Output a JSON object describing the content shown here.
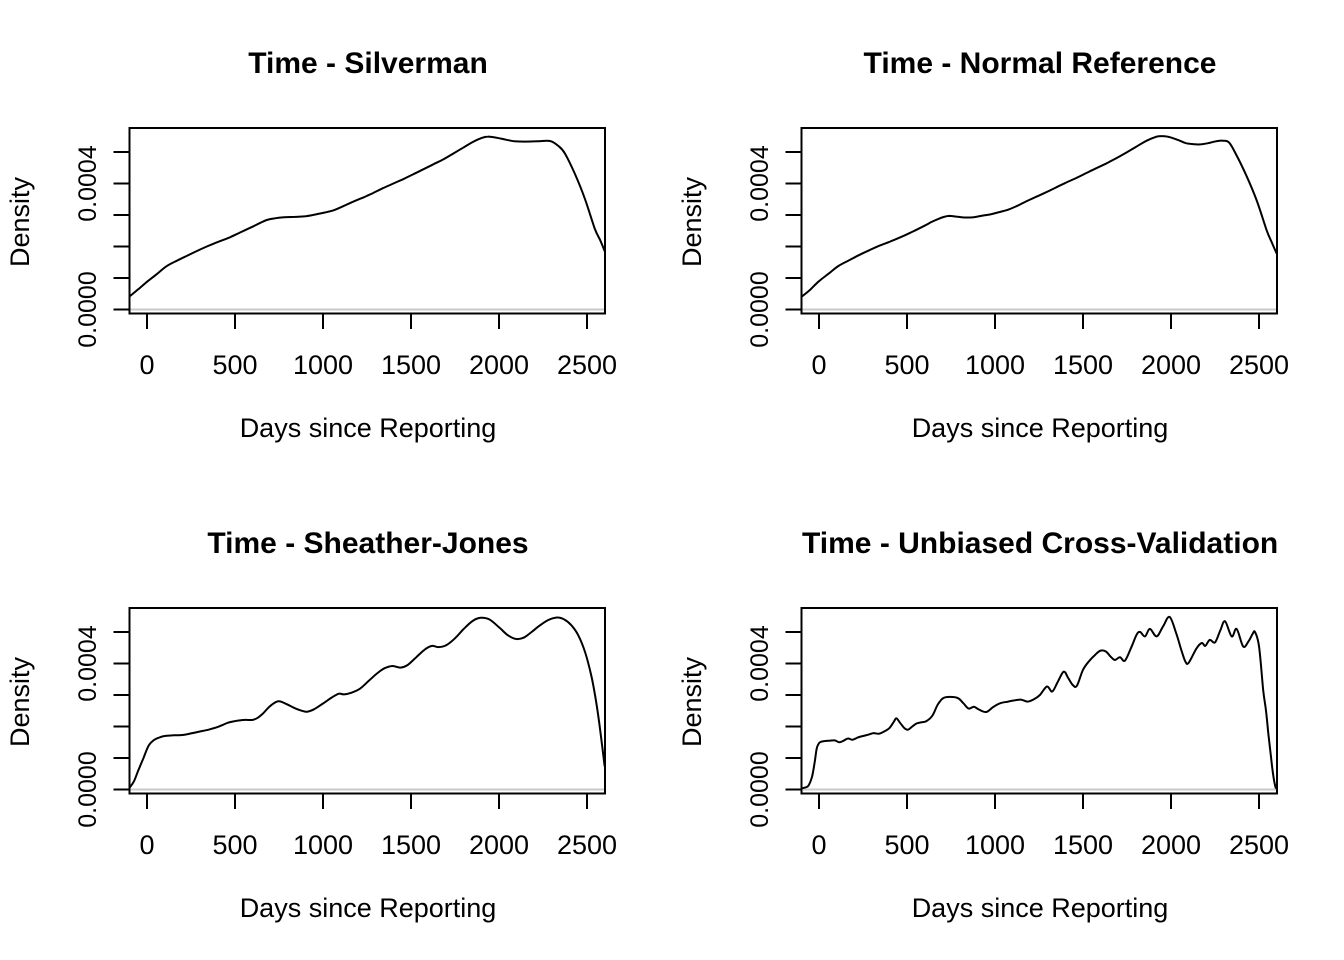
{
  "figure": {
    "background": "#ffffff",
    "curve_color": "#000000",
    "text_color": "#000000",
    "zero_line_color": "#c9c9c9"
  },
  "chart_data": [
    {
      "type": "line",
      "title": "Time - Silverman",
      "xlabel": "Days since Reporting",
      "ylabel": "Density",
      "grid": false,
      "legend": null,
      "xlim": [
        -105,
        2602
      ],
      "ylim": [
        0,
        0.000576
      ],
      "x_ticks": [
        0,
        500,
        1000,
        1500,
        2000,
        2500
      ],
      "x_tick_labels": [
        "0",
        "500",
        "1000",
        "1500",
        "2000",
        "2500"
      ],
      "y_ticks": [
        0,
        0.0001,
        0.0002,
        0.0003,
        0.0004,
        0.0005
      ],
      "y_tick_labels": [
        {
          "value": 0,
          "label": "0.0000"
        },
        {
          "value": 0.0004,
          "label": "0.0004"
        }
      ],
      "x": [
        -96,
        -50,
        0,
        55,
        110,
        170,
        225,
        285,
        340,
        405,
        470,
        535,
        600,
        640,
        680,
        730,
        780,
        840,
        900,
        960,
        1010,
        1060,
        1115,
        1170,
        1230,
        1285,
        1340,
        1400,
        1460,
        1515,
        1570,
        1627,
        1685,
        1740,
        1800,
        1855,
        1900,
        1937,
        1990,
        2040,
        2090,
        2150,
        2220,
        2290,
        2340,
        2375,
        2430,
        2487,
        2544,
        2575,
        2600
      ],
      "y": [
        4.3e-05,
        6.4e-05,
        8.8e-05,
        0.000112,
        0.000137,
        0.000155,
        0.00017,
        0.000186,
        0.0002,
        0.000215,
        0.000229,
        0.000246,
        0.000263,
        0.000274,
        0.000284,
        0.00029,
        0.000293,
        0.000294,
        0.000296,
        0.000302,
        0.000308,
        0.000315,
        0.000328,
        0.000342,
        0.000356,
        0.00037,
        0.000385,
        0.0004,
        0.000415,
        0.00043,
        0.000445,
        0.000461,
        0.000477,
        0.000495,
        0.000515,
        0.000533,
        0.000544,
        0.000549,
        0.000545,
        0.000539,
        0.000534,
        0.000533,
        0.000534,
        0.000535,
        0.000518,
        0.000495,
        0.000432,
        0.000353,
        0.000257,
        0.00022,
        0.000186
      ]
    },
    {
      "type": "line",
      "title": "Time - Normal Reference",
      "xlabel": "Days since Reporting",
      "ylabel": "Density",
      "grid": false,
      "legend": null,
      "xlim": [
        -105,
        2602
      ],
      "ylim": [
        0,
        0.000576
      ],
      "x_ticks": [
        0,
        500,
        1000,
        1500,
        2000,
        2500
      ],
      "x_tick_labels": [
        "0",
        "500",
        "1000",
        "1500",
        "2000",
        "2500"
      ],
      "y_ticks": [
        0,
        0.0001,
        0.0002,
        0.0003,
        0.0004,
        0.0005
      ],
      "y_tick_labels": [
        {
          "value": 0,
          "label": "0.0000"
        },
        {
          "value": 0.0004,
          "label": "0.0004"
        }
      ],
      "x": [
        -96,
        -50,
        0,
        55,
        110,
        170,
        225,
        285,
        340,
        405,
        470,
        535,
        600,
        640,
        680,
        710,
        740,
        780,
        830,
        880,
        930,
        980,
        1030,
        1080,
        1130,
        1180,
        1235,
        1290,
        1345,
        1400,
        1460,
        1515,
        1570,
        1630,
        1685,
        1740,
        1800,
        1855,
        1900,
        1930,
        1965,
        2005,
        2045,
        2085,
        2125,
        2165,
        2210,
        2255,
        2295,
        2330,
        2370,
        2430,
        2487,
        2544,
        2575,
        2600
      ],
      "y": [
        4.2e-05,
        6.3e-05,
        9e-05,
        0.000114,
        0.000138,
        0.000156,
        0.000172,
        0.000188,
        0.000202,
        0.000216,
        0.000231,
        0.000248,
        0.000266,
        0.000278,
        0.000288,
        0.000294,
        0.000297,
        0.000295,
        0.000292,
        0.000293,
        0.000298,
        0.000303,
        0.00031,
        0.000318,
        0.00033,
        0.000344,
        0.000358,
        0.000372,
        0.000387,
        0.000402,
        0.000417,
        0.000432,
        0.000447,
        0.000463,
        0.000479,
        0.000496,
        0.000516,
        0.000534,
        0.000545,
        0.00055,
        0.00055,
        0.000545,
        0.000537,
        0.000528,
        0.000525,
        0.000524,
        0.000528,
        0.000534,
        0.000536,
        0.00053,
        0.000492,
        0.000423,
        0.000346,
        0.000251,
        0.00021,
        0.000178
      ]
    },
    {
      "type": "line",
      "title": "Time - Sheather-Jones",
      "xlabel": "Days since Reporting",
      "ylabel": "Density",
      "grid": false,
      "legend": null,
      "xlim": [
        -105,
        2602
      ],
      "ylim": [
        0,
        0.000576
      ],
      "x_ticks": [
        0,
        500,
        1000,
        1500,
        2000,
        2500
      ],
      "x_tick_labels": [
        "0",
        "500",
        "1000",
        "1500",
        "2000",
        "2500"
      ],
      "y_ticks": [
        0,
        0.0001,
        0.0002,
        0.0003,
        0.0004,
        0.0005
      ],
      "y_tick_labels": [
        {
          "value": 0,
          "label": "0.0000"
        },
        {
          "value": 0.0004,
          "label": "0.0004"
        }
      ],
      "x": [
        -100,
        -75,
        -50,
        -20,
        10,
        40,
        70,
        100,
        150,
        200,
        250,
        300,
        350,
        400,
        430,
        460,
        490,
        520,
        560,
        600,
        630,
        660,
        700,
        745,
        790,
        840,
        880,
        910,
        950,
        1000,
        1050,
        1090,
        1120,
        1160,
        1210,
        1260,
        1310,
        1350,
        1395,
        1440,
        1480,
        1530,
        1580,
        1620,
        1655,
        1700,
        1750,
        1800,
        1850,
        1895,
        1945,
        2000,
        2050,
        2095,
        2140,
        2185,
        2230,
        2280,
        2330,
        2370,
        2410,
        2450,
        2490,
        2525,
        2550,
        2570,
        2588,
        2600
      ],
      "y": [
        5e-06,
        2.5e-05,
        6e-05,
        0.0001,
        0.00014,
        0.000157,
        0.000165,
        0.00017,
        0.000172,
        0.000173,
        0.000178,
        0.000184,
        0.00019,
        0.000198,
        0.000205,
        0.000212,
        0.000216,
        0.000219,
        0.000221,
        0.000221,
        0.000228,
        0.000242,
        0.000265,
        0.00028,
        0.000272,
        0.000258,
        0.00025,
        0.000247,
        0.000255,
        0.000273,
        0.000292,
        0.000304,
        0.000302,
        0.000307,
        0.00032,
        0.000345,
        0.00037,
        0.000385,
        0.000392,
        0.000387,
        0.000395,
        0.00042,
        0.000445,
        0.000456,
        0.000452,
        0.000458,
        0.00048,
        0.00051,
        0.000535,
        0.000545,
        0.00054,
        0.000515,
        0.00049,
        0.000478,
        0.000482,
        0.0005,
        0.00052,
        0.000538,
        0.000546,
        0.00054,
        0.000522,
        0.00049,
        0.000435,
        0.00036,
        0.000285,
        0.00021,
        0.00013,
        7.5e-05
      ]
    },
    {
      "type": "line",
      "title": "Time - Unbiased Cross-Validation",
      "xlabel": "Days since Reporting",
      "ylabel": "Density",
      "grid": false,
      "legend": null,
      "xlim": [
        -105,
        2602
      ],
      "ylim": [
        0,
        0.000576
      ],
      "x_ticks": [
        0,
        500,
        1000,
        1500,
        2000,
        2500
      ],
      "x_tick_labels": [
        "0",
        "500",
        "1000",
        "1500",
        "2000",
        "2500"
      ],
      "y_ticks": [
        0,
        0.0001,
        0.0002,
        0.0003,
        0.0004,
        0.0005
      ],
      "y_tick_labels": [
        {
          "value": 0,
          "label": "0.0000"
        },
        {
          "value": 0.0004,
          "label": "0.0004"
        }
      ],
      "x": [
        -105,
        -80,
        -60,
        -40,
        -25,
        -13,
        0,
        15,
        35,
        60,
        90,
        115,
        140,
        165,
        190,
        220,
        250,
        280,
        310,
        340,
        370,
        400,
        425,
        440,
        460,
        485,
        505,
        530,
        555,
        580,
        610,
        645,
        675,
        705,
        745,
        790,
        820,
        850,
        880,
        905,
        950,
        990,
        1030,
        1075,
        1110,
        1150,
        1185,
        1220,
        1255,
        1295,
        1325,
        1355,
        1390,
        1415,
        1440,
        1465,
        1500,
        1535,
        1570,
        1600,
        1630,
        1660,
        1682,
        1710,
        1738,
        1775,
        1805,
        1825,
        1852,
        1880,
        1918,
        1955,
        1992,
        2030,
        2060,
        2082,
        2100,
        2145,
        2175,
        2195,
        2220,
        2250,
        2280,
        2307,
        2345,
        2373,
        2410,
        2440,
        2465,
        2477,
        2500,
        2524,
        2540,
        2553,
        2565,
        2575,
        2585,
        2595
      ],
      "y": [
        3e-06,
        6e-06,
        1.2e-05,
        4e-05,
        8.5e-05,
        0.00013,
        0.000147,
        0.000152,
        0.000154,
        0.000155,
        0.000156,
        0.00015,
        0.000155,
        0.000162,
        0.000158,
        0.000165,
        0.00017,
        0.000174,
        0.000179,
        0.000177,
        0.000184,
        0.000195,
        0.000215,
        0.000226,
        0.000212,
        0.000195,
        0.00019,
        0.0002,
        0.00021,
        0.000213,
        0.000217,
        0.000235,
        0.00027,
        0.00029,
        0.000294,
        0.00029,
        0.000274,
        0.000257,
        0.000263,
        0.000255,
        0.000246,
        0.000262,
        0.000274,
        0.000279,
        0.000283,
        0.000285,
        0.000279,
        0.000286,
        0.0003,
        0.000327,
        0.000311,
        0.00034,
        0.000374,
        0.000355,
        0.000333,
        0.000329,
        0.00038,
        0.000408,
        0.000428,
        0.000441,
        0.000438,
        0.00042,
        0.000411,
        0.00042,
        0.000409,
        0.000452,
        0.000492,
        0.0005,
        0.000486,
        0.00051,
        0.000486,
        0.000518,
        0.000548,
        0.000495,
        0.00044,
        0.000406,
        0.000402,
        0.000448,
        0.000465,
        0.000456,
        0.000475,
        0.000467,
        0.000505,
        0.000534,
        0.000486,
        0.00051,
        0.000454,
        0.00047,
        0.000495,
        0.0005,
        0.000455,
        0.000315,
        0.00025,
        0.000178,
        0.00012,
        7e-05,
        3e-05,
        5e-06
      ]
    }
  ]
}
